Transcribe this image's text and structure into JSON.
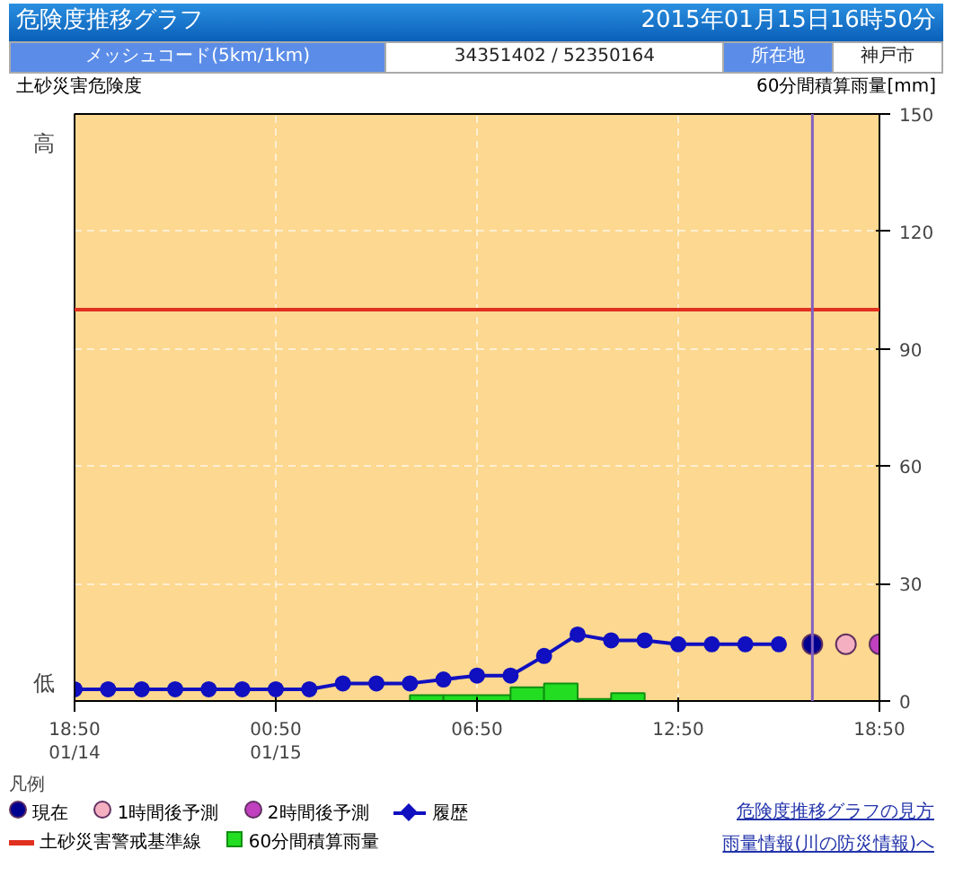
{
  "chart_data": {
    "type": "line",
    "title": "危険度推移グラフ",
    "subtitle": "2015年01月15日16時50分",
    "ylabel": "土砂災害危険度",
    "y2label": "60分間積算雨量[mm]",
    "legend_title": "凡例",
    "annotations": [
      "メッシュコード(5km/1km)",
      "34351402 / 52350164",
      "所在地",
      "神戸市",
      "危険度推移グラフの見方",
      "雨量情報(川の防災情報)へ",
      "高",
      "低"
    ],
    "xlim": [
      "2015-01-14T18:50",
      "2015-01-15T18:50"
    ],
    "xticks": [
      {
        "value": "2015-01-14T18:50",
        "label": "18:50\n01/14"
      },
      {
        "value": "2015-01-15T00:50",
        "label": "00:50\n01/15"
      },
      {
        "value": "2015-01-15T06:50",
        "label": "06:50"
      },
      {
        "value": "2015-01-15T12:50",
        "label": "12:50"
      },
      {
        "value": "2015-01-15T18:50",
        "label": "18:50"
      }
    ],
    "ylim": [
      0,
      150
    ],
    "yticks": [
      0,
      30,
      60,
      90,
      120,
      150
    ],
    "grid": true,
    "legend": "bottom",
    "ref_lines": [
      {
        "axis": "y",
        "value": 100,
        "label": "土砂災害警戒基準線",
        "color": "#e03020"
      },
      {
        "axis": "x",
        "value": "2015-01-15T16:50",
        "color": "#8060c0"
      }
    ],
    "series": [
      {
        "name": "現在",
        "type": "scatter",
        "marker": "circle",
        "color": "#000090",
        "x": [
          "2015-01-15T16:50"
        ],
        "values": [
          14.5
        ]
      },
      {
        "name": "1時間後予測",
        "type": "scatter",
        "marker": "circle",
        "color": "#f4b0c0",
        "x": [
          "2015-01-15T17:50"
        ],
        "values": [
          14.5
        ]
      },
      {
        "name": "2時間後予測",
        "type": "scatter",
        "marker": "circle",
        "color": "#c040c0",
        "x": [
          "2015-01-15T18:50"
        ],
        "values": [
          14.5
        ]
      },
      {
        "name": "履歴",
        "marker": "circle",
        "color": "#1010c0",
        "x": [
          "2015-01-14T18:50",
          "2015-01-14T19:50",
          "2015-01-14T20:50",
          "2015-01-14T21:50",
          "2015-01-14T22:50",
          "2015-01-14T23:50",
          "2015-01-15T00:50",
          "2015-01-15T01:50",
          "2015-01-15T02:50",
          "2015-01-15T03:50",
          "2015-01-15T04:50",
          "2015-01-15T05:50",
          "2015-01-15T06:50",
          "2015-01-15T07:50",
          "2015-01-15T08:50",
          "2015-01-15T09:50",
          "2015-01-15T10:50",
          "2015-01-15T11:50",
          "2015-01-15T12:50",
          "2015-01-15T13:50",
          "2015-01-15T14:50",
          "2015-01-15T15:50"
        ],
        "values": [
          3,
          3,
          3,
          3,
          3,
          3,
          3,
          3,
          4.5,
          4.5,
          4.5,
          5.5,
          6.5,
          6.5,
          11.5,
          17,
          15.5,
          15.5,
          14.5,
          14.5,
          14.5,
          14.5
        ]
      },
      {
        "name": "60分間積算雨量",
        "type": "bar",
        "color": "#22dd22",
        "x": [
          "2015-01-15T05:20",
          "2015-01-15T06:20",
          "2015-01-15T07:20",
          "2015-01-15T08:20",
          "2015-01-15T09:20",
          "2015-01-15T10:20",
          "2015-01-15T11:20"
        ],
        "values": [
          1.5,
          1.5,
          1.5,
          3.5,
          4.5,
          0.5,
          2
        ]
      }
    ]
  }
}
